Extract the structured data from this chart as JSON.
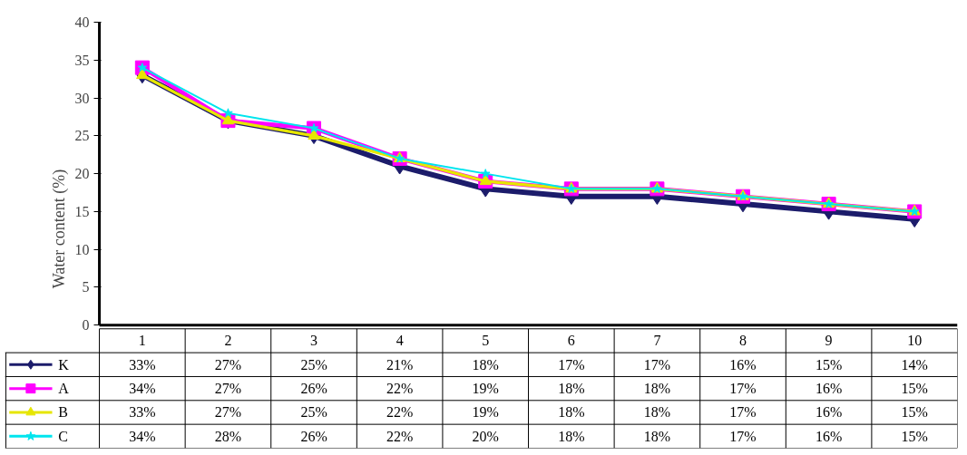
{
  "chart_data": {
    "type": "line",
    "ylabel": "Water content (%)",
    "categories": [
      "1",
      "2",
      "3",
      "4",
      "5",
      "6",
      "7",
      "8",
      "9",
      "10"
    ],
    "ylim": [
      0,
      40
    ],
    "yticks": [
      0,
      5,
      10,
      15,
      20,
      25,
      30,
      35,
      40
    ],
    "grid": false,
    "legend": "bottom",
    "line_style": "solid",
    "series": [
      {
        "name": "K",
        "color": "#1c1c6b",
        "marker": "diamond",
        "values": [
          33,
          27,
          25,
          21,
          18,
          17,
          17,
          16,
          15,
          14
        ],
        "value_labels": [
          "33%",
          "27%",
          "25%",
          "21%",
          "18%",
          "17%",
          "17%",
          "16%",
          "15%",
          "14%"
        ]
      },
      {
        "name": "A",
        "color": "#ff00ff",
        "marker": "square",
        "values": [
          34,
          27,
          26,
          22,
          19,
          18,
          18,
          17,
          16,
          15
        ],
        "value_labels": [
          "34%",
          "27%",
          "26%",
          "22%",
          "19%",
          "18%",
          "18%",
          "17%",
          "16%",
          "15%"
        ]
      },
      {
        "name": "B",
        "color": "#e6e600",
        "marker": "triangle",
        "values": [
          33,
          27,
          25,
          22,
          19,
          18,
          18,
          17,
          16,
          15
        ],
        "value_labels": [
          "33%",
          "27%",
          "25%",
          "22%",
          "19%",
          "18%",
          "18%",
          "17%",
          "16%",
          "15%"
        ]
      },
      {
        "name": "C",
        "color": "#00e5ee",
        "marker": "star",
        "values": [
          34,
          28,
          26,
          22,
          20,
          18,
          18,
          17,
          16,
          15
        ],
        "value_labels": [
          "34%",
          "28%",
          "26%",
          "22%",
          "20%",
          "18%",
          "18%",
          "17%",
          "16%",
          "15%"
        ]
      }
    ]
  }
}
